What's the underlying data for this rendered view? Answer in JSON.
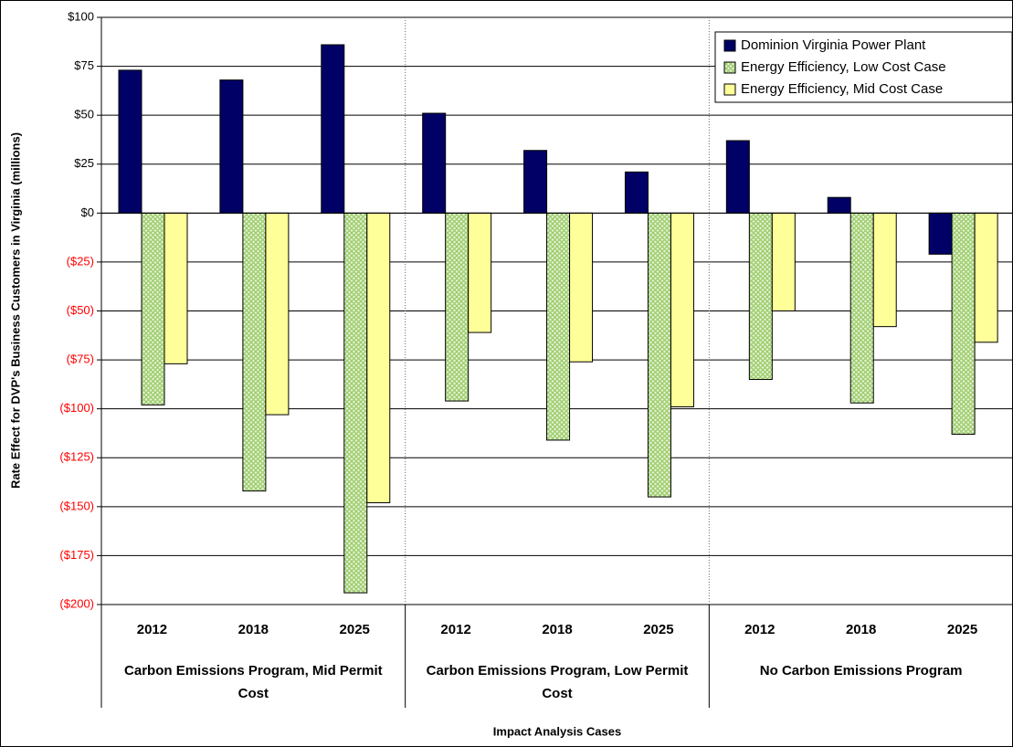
{
  "chart_data": {
    "type": "bar",
    "y_axis_label": "Rate Effect for DVP's Business Customers in Virginia (millions)",
    "x_axis_label": "Impact Analysis Cases",
    "categories": [
      "2012",
      "2018",
      "2025",
      "2012",
      "2018",
      "2025",
      "2012",
      "2018",
      "2025"
    ],
    "groups": [
      "Carbon Emissions Program, Mid Permit Cost",
      "Carbon Emissions Program, Low Permit Cost",
      "No Carbon Emissions Program"
    ],
    "series": [
      {
        "name": "Dominion Virginia Power Plant",
        "color": "#000066",
        "values": [
          73,
          68,
          86,
          51,
          32,
          21,
          37,
          8,
          -21
        ]
      },
      {
        "name": "Energy Efficiency, Low Cost Case",
        "color": "#99cc66",
        "values": [
          -98,
          -142,
          -194,
          -96,
          -116,
          -145,
          -85,
          -97,
          -113
        ]
      },
      {
        "name": "Energy Efficiency, Mid Cost Case",
        "color": "#ffff99",
        "values": [
          -77,
          -103,
          -148,
          -61,
          -76,
          -99,
          -50,
          -58,
          -66
        ]
      }
    ],
    "ylim": [
      -200,
      100
    ],
    "yticks": [
      {
        "value": 100,
        "label": "$100"
      },
      {
        "value": 75,
        "label": "$75"
      },
      {
        "value": 50,
        "label": "$50"
      },
      {
        "value": 25,
        "label": "$25"
      },
      {
        "value": 0,
        "label": "$0"
      },
      {
        "value": -25,
        "label": "($25)"
      },
      {
        "value": -50,
        "label": "($50)"
      },
      {
        "value": -75,
        "label": "($75)"
      },
      {
        "value": -100,
        "label": "($100)"
      },
      {
        "value": -125,
        "label": "($125)"
      },
      {
        "value": -150,
        "label": "($150)"
      },
      {
        "value": -175,
        "label": "($175)"
      },
      {
        "value": -200,
        "label": "($200)"
      }
    ],
    "negative_tick_color": "#ff0000",
    "grid": true,
    "legend_position": "upper right"
  }
}
